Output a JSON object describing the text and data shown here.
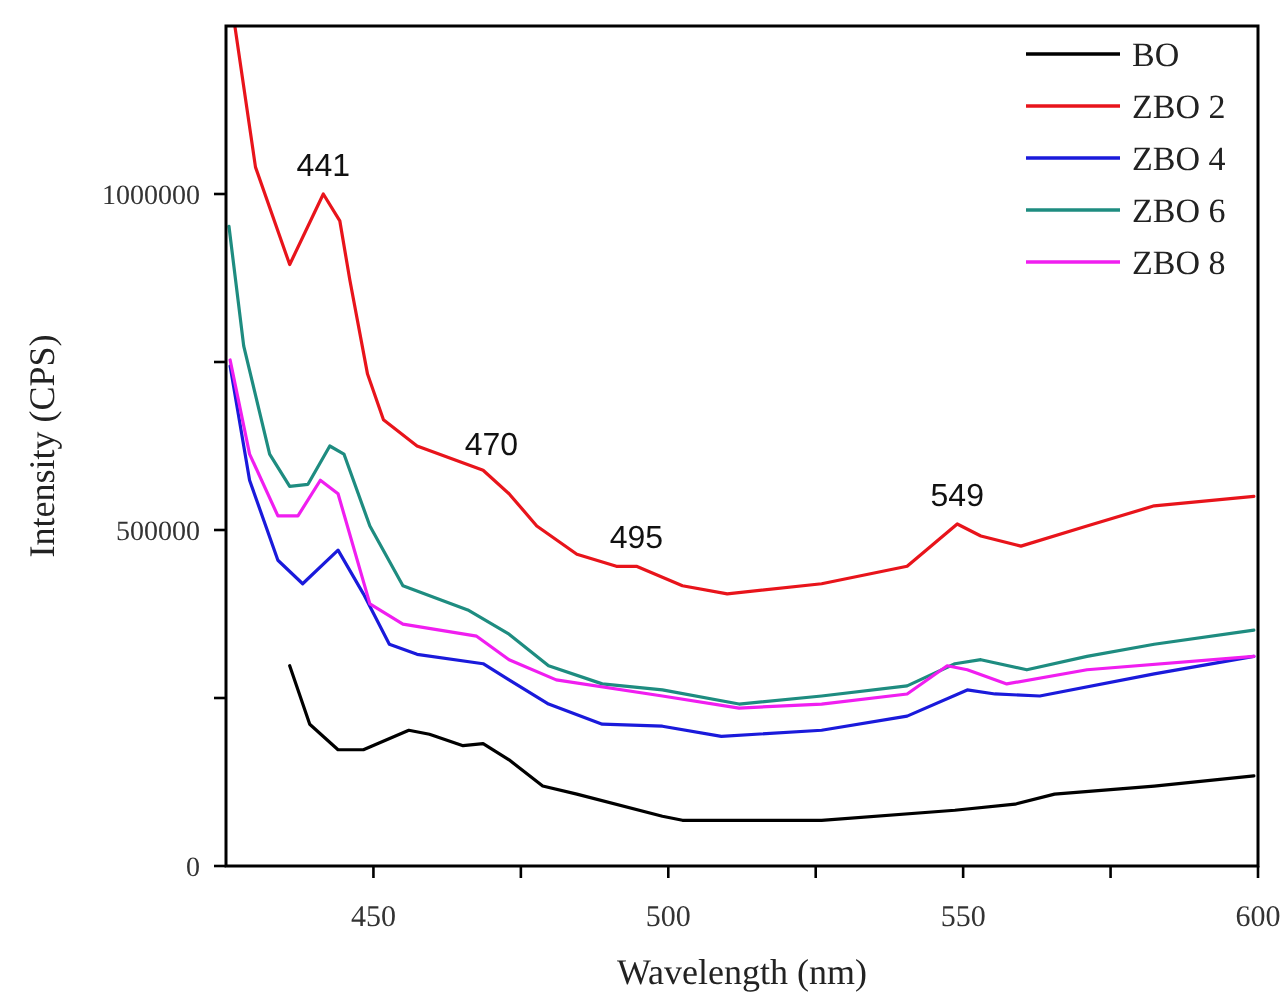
{
  "chart_data": {
    "type": "line",
    "xlabel": "Wavelength (nm)",
    "ylabel": "Intensity (CPS)",
    "xlim": [
      425,
      600
    ],
    "ylim": [
      0,
      1250000
    ],
    "xticks": [
      450,
      {
        "value": 475,
        "label": null
      },
      500,
      {
        "value": 525,
        "label": null
      },
      550,
      {
        "value": 575,
        "label": null
      },
      600
    ],
    "yticks": [
      0,
      {
        "value": 250000,
        "label": null
      },
      500000,
      {
        "value": 750000,
        "label": null
      },
      1000000
    ],
    "grid": false,
    "legend": "top right",
    "marker": "none",
    "line_style": "solid",
    "annotations": [
      {
        "text": "441",
        "x": 441.5,
        "y": 1000000
      },
      {
        "text": "470",
        "x": 470,
        "y": 585000
      },
      {
        "text": "495",
        "x": 494.6,
        "y": 446000
      },
      {
        "text": "549",
        "x": 549,
        "y": 509000
      }
    ],
    "series": [
      {
        "name": "BO",
        "color": "#000000",
        "x": [
          435.8,
          439.2,
          444,
          448.3,
          456,
          459.5,
          465.2,
          468.6,
          473,
          478.7,
          484.5,
          499,
          502.4,
          526,
          548.6,
          558.8,
          565.5,
          582.4,
          599.3
        ],
        "values": [
          298000,
          211000,
          173000,
          173000,
          202000,
          196000,
          179000,
          182000,
          158000,
          119000,
          107000,
          74000,
          68000,
          68000,
          83000,
          92000,
          107000,
          119000,
          134000
        ]
      },
      {
        "name": "ZBO 2",
        "color": "#e8141b",
        "x": [
          426.5,
          430,
          435.8,
          441.5,
          444.3,
          446,
          449,
          451.7,
          457.4,
          468.6,
          473,
          477.7,
          484.5,
          491.2,
          494.6,
          502.4,
          510,
          526,
          540.5,
          549,
          553,
          559.8,
          571,
          582.4,
          599.3
        ],
        "values": [
          1250000,
          1040000,
          895000,
          1000000,
          960000,
          872000,
          732000,
          664000,
          625000,
          589000,
          554000,
          506000,
          464000,
          446000,
          446000,
          417000,
          405000,
          420000,
          446000,
          509000,
          491000,
          476000,
          506000,
          536000,
          550000
        ]
      },
      {
        "name": "ZBO 4",
        "color": "#1a1adb",
        "x": [
          425.7,
          429,
          433.8,
          438,
          444,
          448.3,
          452.7,
          457.4,
          468.6,
          473,
          479.7,
          488.8,
          499,
          509,
          526,
          540.5,
          550.7,
          555.4,
          563,
          582.4,
          599.3
        ],
        "values": [
          744000,
          574000,
          455000,
          420000,
          470000,
          405000,
          330000,
          315000,
          301000,
          277000,
          241000,
          211000,
          208000,
          193000,
          202000,
          223000,
          262000,
          256000,
          253000,
          286000,
          312000
        ]
      },
      {
        "name": "ZBO 6",
        "color": "#1e8c80",
        "x": [
          425.5,
          428,
          432.4,
          435.8,
          438.9,
          442.6,
          445,
          449.4,
          455,
          466,
          473,
          479.7,
          488.8,
          499,
          512,
          526,
          540.5,
          548.6,
          553,
          560.8,
          571,
          582.4,
          599.3
        ],
        "values": [
          952000,
          774000,
          613000,
          565000,
          568000,
          625000,
          613000,
          506000,
          417000,
          381000,
          345000,
          298000,
          271000,
          262000,
          241000,
          253000,
          268000,
          301000,
          307000,
          292000,
          312000,
          330000,
          351000
        ]
      },
      {
        "name": "ZBO 8",
        "color": "#f01ef0",
        "x": [
          425.7,
          429,
          433.8,
          437.2,
          441,
          444,
          449.4,
          455,
          467.5,
          473,
          481,
          499,
          512,
          526,
          540.5,
          547.3,
          550.7,
          557.4,
          571,
          599.3
        ],
        "values": [
          753000,
          613000,
          521000,
          521000,
          574000,
          554000,
          390000,
          360000,
          342000,
          307000,
          277000,
          253000,
          235000,
          241000,
          256000,
          298000,
          292000,
          271000,
          292000,
          312000
        ]
      }
    ]
  }
}
